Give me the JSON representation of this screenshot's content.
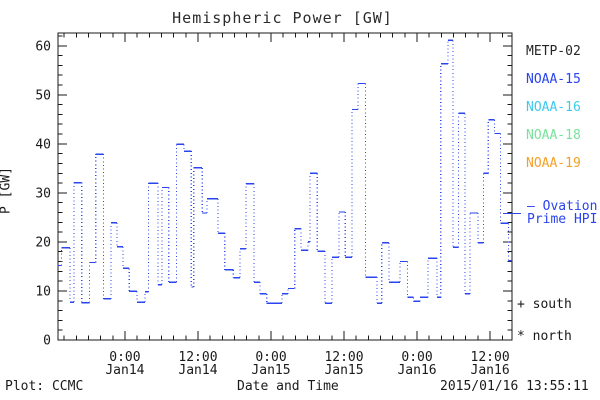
{
  "title": "Hemispheric Power [GW]",
  "y_axis_label": "P [GW]",
  "legend": {
    "satellites": [
      {
        "label": "METP-02",
        "color": "#262626"
      },
      {
        "label": "NOAA-15",
        "color": "#2a44ee"
      },
      {
        "label": "NOAA-16",
        "color": "#3ec9f0"
      },
      {
        "label": "NOAA-18",
        "color": "#79e39b"
      },
      {
        "label": "NOAA-19",
        "color": "#f5a127"
      }
    ]
  },
  "annotations": {
    "ovation_line1": "— Ovation",
    "ovation_line2": "Prime HPI",
    "ovation_marker_gw": 25.8,
    "south": "+ south",
    "north": "* north"
  },
  "footer": {
    "left": "Plot: CCMC",
    "center": "Date and Time",
    "right": "2015/01/16 13:55:11"
  },
  "chart_data": {
    "type": "line",
    "style": "steps-post, dotted vertical connectors",
    "title": "Hemispheric Power [GW]",
    "xlabel": "Date and Time",
    "ylabel": "P [GW]",
    "series_name": "Ovation Prime HPI",
    "series_color": "#2a44ee",
    "grid": false,
    "legend_position": "right-outside",
    "x_unit": "hours since 2015-01-13 00:00 UT",
    "xlim": [
      13.0,
      87.6
    ],
    "ylim": [
      0,
      62.6
    ],
    "y_major_ticks": [
      0,
      10,
      20,
      30,
      40,
      50,
      60
    ],
    "y_minor_step": 2,
    "x_minor_step": 2,
    "x_major_ticks": [
      {
        "t": 24,
        "time": "0:00",
        "date": "Jan14"
      },
      {
        "t": 36,
        "time": "12:00",
        "date": "Jan14"
      },
      {
        "t": 48,
        "time": "0:00",
        "date": "Jan15"
      },
      {
        "t": 60,
        "time": "12:00",
        "date": "Jan15"
      },
      {
        "t": 72,
        "time": "0:00",
        "date": "Jan16"
      },
      {
        "t": 84,
        "time": "12:00",
        "date": "Jan16"
      }
    ],
    "t_end": 87.6,
    "steps": [
      [
        13.0,
        15.2
      ],
      [
        13.6,
        18.8
      ],
      [
        15.0,
        7.7
      ],
      [
        15.6,
        32.1
      ],
      [
        16.9,
        7.6
      ],
      [
        18.2,
        15.8
      ],
      [
        19.2,
        37.9
      ],
      [
        20.5,
        8.4
      ],
      [
        21.7,
        23.9
      ],
      [
        22.7,
        19.0
      ],
      [
        23.7,
        14.6
      ],
      [
        24.7,
        9.9
      ],
      [
        26.0,
        7.7
      ],
      [
        27.3,
        9.8
      ],
      [
        27.9,
        32.0
      ],
      [
        29.4,
        11.3
      ],
      [
        30.1,
        31.1
      ],
      [
        31.2,
        11.8
      ],
      [
        32.5,
        39.9
      ],
      [
        33.7,
        38.5
      ],
      [
        34.9,
        10.8
      ],
      [
        35.3,
        35.1
      ],
      [
        36.7,
        25.9
      ],
      [
        37.5,
        28.8
      ],
      [
        39.3,
        21.8
      ],
      [
        40.4,
        14.3
      ],
      [
        41.8,
        12.7
      ],
      [
        42.9,
        18.6
      ],
      [
        43.9,
        31.9
      ],
      [
        45.2,
        11.8
      ],
      [
        46.2,
        9.4
      ],
      [
        47.3,
        7.5
      ],
      [
        49.8,
        9.4
      ],
      [
        50.8,
        10.5
      ],
      [
        51.9,
        22.7
      ],
      [
        52.9,
        18.3
      ],
      [
        54.1,
        20.0
      ],
      [
        54.4,
        34.0
      ],
      [
        55.6,
        18.1
      ],
      [
        56.9,
        7.5
      ],
      [
        58.0,
        16.9
      ],
      [
        59.2,
        26.1
      ],
      [
        60.2,
        16.9
      ],
      [
        61.3,
        47.0
      ],
      [
        62.3,
        52.3
      ],
      [
        63.5,
        12.8
      ],
      [
        65.4,
        7.5
      ],
      [
        66.2,
        19.8
      ],
      [
        67.4,
        11.8
      ],
      [
        69.2,
        16.0
      ],
      [
        70.4,
        8.7
      ],
      [
        71.4,
        7.9
      ],
      [
        72.5,
        8.7
      ],
      [
        73.8,
        16.7
      ],
      [
        75.3,
        8.7
      ],
      [
        75.9,
        56.3
      ],
      [
        77.1,
        61.1
      ],
      [
        77.9,
        18.9
      ],
      [
        78.8,
        46.2
      ],
      [
        79.9,
        9.4
      ],
      [
        80.7,
        25.9
      ],
      [
        82.0,
        19.8
      ],
      [
        82.9,
        34.0
      ],
      [
        83.7,
        44.9
      ],
      [
        84.7,
        42.1
      ],
      [
        85.7,
        23.8
      ],
      [
        87.0,
        16.2
      ]
    ]
  }
}
